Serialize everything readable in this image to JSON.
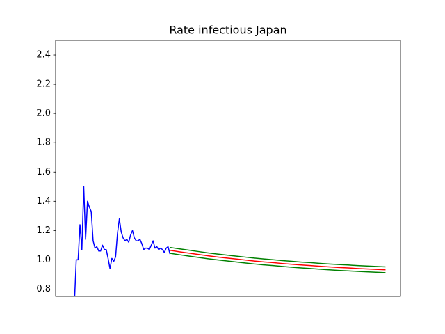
{
  "chart_data": {
    "type": "line",
    "title": "Rate infectious Japan",
    "xlim": [
      -10,
      174
    ],
    "ylim": [
      0.75,
      2.5
    ],
    "yticks": [
      0.8,
      {
        "value": 1,
        "label": "1.0"
      },
      1.2,
      1.4,
      1.6,
      1.8,
      {
        "value": 2,
        "label": "2.0"
      },
      2.2,
      2.4
    ],
    "series": [
      {
        "color": "#0000ff",
        "x": [
          0,
          1,
          2,
          3,
          4,
          5,
          6,
          7,
          8,
          9,
          10,
          11,
          12,
          13,
          14,
          15,
          16,
          17,
          18,
          19,
          20,
          21,
          22,
          23,
          24,
          25,
          26,
          27,
          28,
          29,
          30,
          31,
          32,
          33,
          34,
          35,
          36,
          37,
          38,
          39,
          40,
          41,
          42,
          43,
          44,
          45,
          46,
          47,
          48,
          49,
          50,
          51
        ],
        "values": [
          0.7,
          1.0,
          1.0,
          1.24,
          1.07,
          1.5,
          1.14,
          1.4,
          1.36,
          1.33,
          1.13,
          1.08,
          1.09,
          1.06,
          1.06,
          1.1,
          1.07,
          1.07,
          1.01,
          0.94,
          1.01,
          0.99,
          1.02,
          1.18,
          1.28,
          1.19,
          1.15,
          1.13,
          1.14,
          1.12,
          1.17,
          1.2,
          1.15,
          1.13,
          1.13,
          1.14,
          1.11,
          1.07,
          1.08,
          1.08,
          1.07,
          1.1,
          1.13,
          1.08,
          1.09,
          1.07,
          1.08,
          1.07,
          1.05,
          1.08,
          1.09,
          1.04
        ]
      },
      {
        "color": "#ff0000",
        "x": [
          51,
          56,
          61,
          66,
          71,
          76,
          81,
          86,
          91,
          96,
          101,
          106,
          111,
          116,
          121,
          126,
          131,
          136,
          141,
          146,
          151,
          156,
          161,
          166
        ],
        "values": [
          1.065,
          1.055,
          1.046,
          1.037,
          1.028,
          1.02,
          1.013,
          1.006,
          0.999,
          0.992,
          0.986,
          0.981,
          0.975,
          0.97,
          0.965,
          0.961,
          0.956,
          0.952,
          0.948,
          0.945,
          0.941,
          0.938,
          0.935,
          0.932
        ]
      },
      {
        "color": "#008000",
        "x": [
          51,
          56,
          61,
          66,
          71,
          76,
          81,
          86,
          91,
          96,
          101,
          106,
          111,
          116,
          121,
          126,
          131,
          136,
          141,
          146,
          151,
          156,
          161,
          166
        ],
        "values": [
          1.085,
          1.075,
          1.066,
          1.057,
          1.048,
          1.04,
          1.033,
          1.026,
          1.019,
          1.012,
          1.006,
          1.001,
          0.995,
          0.99,
          0.985,
          0.981,
          0.976,
          0.972,
          0.968,
          0.965,
          0.961,
          0.958,
          0.955,
          0.952
        ]
      },
      {
        "color": "#008000",
        "x": [
          51,
          56,
          61,
          66,
          71,
          76,
          81,
          86,
          91,
          96,
          101,
          106,
          111,
          116,
          121,
          126,
          131,
          136,
          141,
          146,
          151,
          156,
          161,
          166
        ],
        "values": [
          1.045,
          1.035,
          1.026,
          1.017,
          1.008,
          1.0,
          0.993,
          0.986,
          0.979,
          0.972,
          0.966,
          0.961,
          0.955,
          0.95,
          0.945,
          0.941,
          0.936,
          0.932,
          0.928,
          0.925,
          0.921,
          0.918,
          0.915,
          0.912
        ]
      }
    ]
  }
}
